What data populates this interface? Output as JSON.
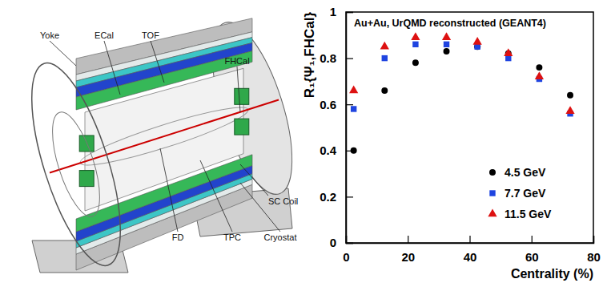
{
  "chart_data": {
    "type": "scatter",
    "title": "Au+Au, UrQMD reconstructed (GEANT4)",
    "x_label": "Centrality (%)",
    "y_label": "R₁{Ψ₁,FHCal}",
    "x": [
      2.5,
      12.5,
      22.5,
      32.5,
      42.5,
      52.5,
      62.5,
      72.5
    ],
    "series": [
      {
        "name": "4.5 GeV",
        "color": "#000000",
        "marker": "circle",
        "values": [
          0.4,
          0.66,
          0.78,
          0.83,
          0.85,
          0.82,
          0.76,
          0.64
        ]
      },
      {
        "name": "7.7 GeV",
        "color": "#1f44e0",
        "marker": "square",
        "values": [
          0.58,
          0.8,
          0.86,
          0.86,
          0.85,
          0.8,
          0.71,
          0.56
        ]
      },
      {
        "name": "11.5 GeV",
        "color": "#dd1111",
        "marker": "triangle",
        "values": [
          0.66,
          0.85,
          0.89,
          0.89,
          0.87,
          0.82,
          0.72,
          0.57
        ]
      }
    ],
    "xlim": [
      0,
      80
    ],
    "xticks": [
      0,
      20,
      40,
      60,
      80
    ],
    "ylim": [
      0,
      1
    ],
    "yticks": [
      0,
      0.2,
      0.4,
      0.6,
      0.8,
      1
    ],
    "legend": "lower-right",
    "grid": false
  },
  "diagram": {
    "labels": [
      "Yoke",
      "ECal",
      "TOF",
      "FHCal",
      "SC Coil",
      "Cryostat",
      "TPC",
      "FD"
    ]
  }
}
